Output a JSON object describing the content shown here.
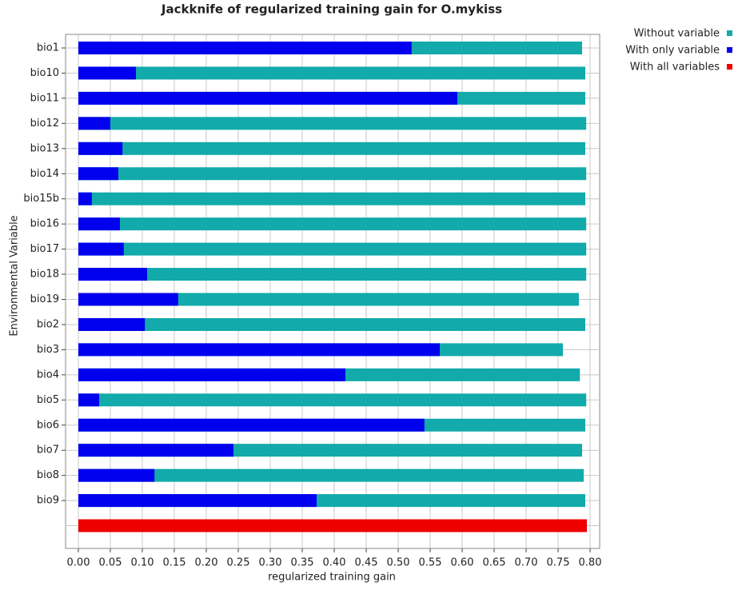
{
  "chart_data": {
    "type": "jackknife-bar",
    "title": "Jackknife of regularized training gain for O.mykiss",
    "x_label": "regularized training gain",
    "y_label": "Environmental Variable",
    "categories": [
      "bio1",
      "bio10",
      "bio11",
      "bio12",
      "bio13",
      "bio14",
      "bio15b",
      "bio16",
      "bio17",
      "bio18",
      "bio19",
      "bio2",
      "bio3",
      "bio4",
      "bio5",
      "bio6",
      "bio7",
      "bio8",
      "bio9",
      null
    ],
    "series": [
      {
        "name": "Without variable",
        "color": "#12aaaa",
        "values": [
          0.7875,
          0.7925,
          0.7925,
          0.794,
          0.7925,
          0.794,
          0.7925,
          0.794,
          0.794,
          0.794,
          0.7825,
          0.7925,
          0.7575,
          0.784,
          0.794,
          0.7925,
          0.7875,
          0.79,
          0.7925,
          null
        ]
      },
      {
        "name": "With only variable",
        "color": "#0000ee",
        "values": [
          0.521,
          0.09,
          0.5925,
          0.05,
          0.069,
          0.0625,
          0.021,
          0.065,
          0.071,
          0.1075,
          0.156,
          0.104,
          0.565,
          0.4175,
          0.0325,
          0.541,
          0.2425,
          0.119,
          0.3725,
          null
        ]
      },
      {
        "name": "With all variables",
        "color": "#ee0000",
        "values": [
          null,
          null,
          null,
          null,
          null,
          null,
          null,
          null,
          null,
          null,
          null,
          null,
          null,
          null,
          null,
          null,
          null,
          null,
          null,
          0.795
        ]
      }
    ],
    "xlim": [
      -0.02,
      0.815
    ],
    "xticks": [
      {
        "value": 0,
        "label": "0.00"
      },
      {
        "value": 0.05,
        "label": "0.05"
      },
      {
        "value": 0.1,
        "label": "0.10"
      },
      {
        "value": 0.15,
        "label": "0.15"
      },
      {
        "value": 0.2,
        "label": "0.20"
      },
      {
        "value": 0.25,
        "label": "0.25"
      },
      {
        "value": 0.3,
        "label": "0.30"
      },
      {
        "value": 0.35,
        "label": "0.35"
      },
      {
        "value": 0.4,
        "label": "0.40"
      },
      {
        "value": 0.45,
        "label": "0.45"
      },
      {
        "value": 0.5,
        "label": "0.50"
      },
      {
        "value": 0.55,
        "label": "0.55"
      },
      {
        "value": 0.6,
        "label": "0.60"
      },
      {
        "value": 0.65,
        "label": "0.65"
      },
      {
        "value": 0.7,
        "label": "0.70"
      },
      {
        "value": 0.75,
        "label": "0.75"
      },
      {
        "value": 0.8,
        "label": "0.80"
      }
    ],
    "grid": true,
    "legend": "top-right"
  }
}
